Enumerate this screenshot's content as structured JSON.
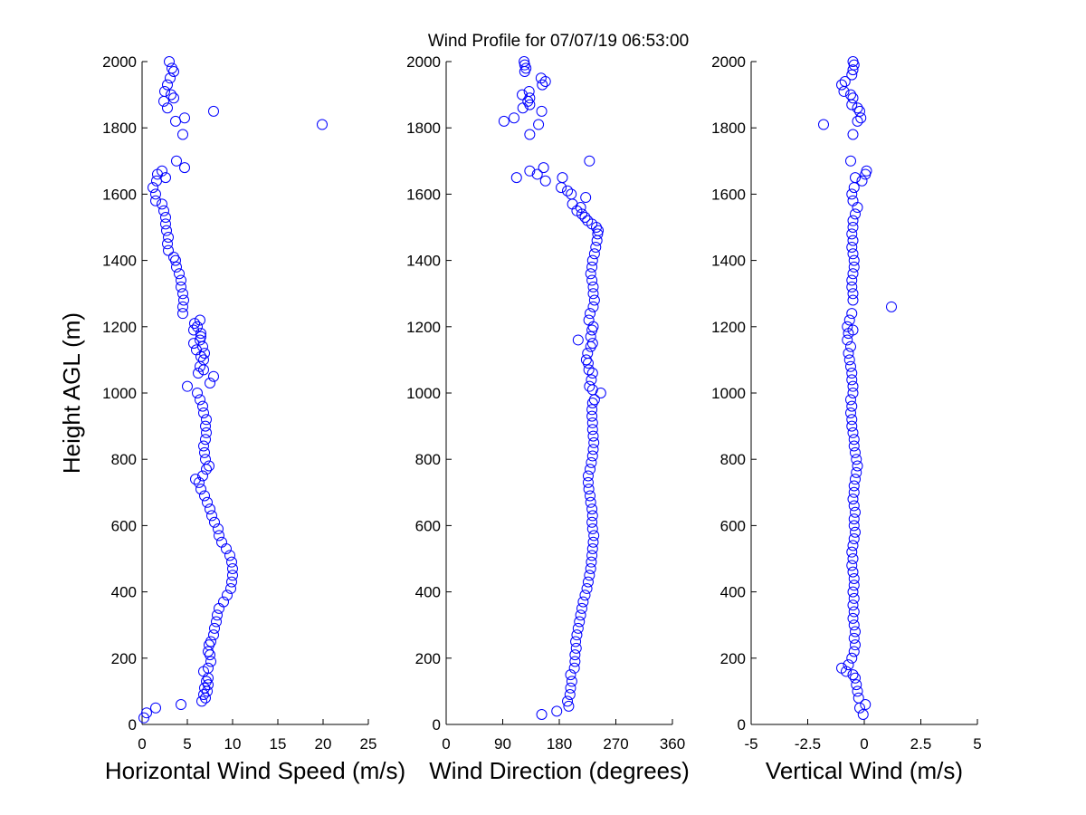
{
  "title": "Wind Profile for  07/07/19 06:53:00",
  "colors": {
    "marker": "#0000ff",
    "axis": "#000000",
    "background": "#ffffff"
  },
  "chart_data": [
    {
      "type": "scatter",
      "xlabel": "Horizontal Wind Speed (m/s)",
      "ylabel": "Height AGL (m)",
      "xlim": [
        0,
        25
      ],
      "ylim": [
        0,
        2000
      ],
      "xticks": [
        "0",
        "5",
        "10",
        "15",
        "20",
        "25"
      ],
      "yticks": [
        "0",
        "200",
        "400",
        "600",
        "800",
        "1000",
        "1200",
        "1400",
        "1600",
        "1800",
        "2000"
      ],
      "marker": "open-circle",
      "points": [
        [
          0.2,
          20
        ],
        [
          0.5,
          35
        ],
        [
          1.5,
          50
        ],
        [
          4.3,
          60
        ],
        [
          6.6,
          70
        ],
        [
          7,
          80
        ],
        [
          6.8,
          90
        ],
        [
          7.2,
          100
        ],
        [
          6.9,
          110
        ],
        [
          7.3,
          120
        ],
        [
          7.1,
          130
        ],
        [
          7.3,
          140
        ],
        [
          6.8,
          160
        ],
        [
          7.3,
          170
        ],
        [
          7.6,
          190
        ],
        [
          7.5,
          210
        ],
        [
          7.3,
          220
        ],
        [
          7.4,
          240
        ],
        [
          7.6,
          250
        ],
        [
          7.9,
          270
        ],
        [
          8,
          290
        ],
        [
          8.2,
          310
        ],
        [
          8.3,
          330
        ],
        [
          8.5,
          350
        ],
        [
          9,
          370
        ],
        [
          9.4,
          390
        ],
        [
          9.8,
          410
        ],
        [
          9.9,
          430
        ],
        [
          10,
          450
        ],
        [
          10,
          470
        ],
        [
          9.9,
          490
        ],
        [
          9.7,
          510
        ],
        [
          9.3,
          530
        ],
        [
          8.8,
          550
        ],
        [
          8.5,
          570
        ],
        [
          8.4,
          590
        ],
        [
          8,
          610
        ],
        [
          7.7,
          630
        ],
        [
          7.5,
          650
        ],
        [
          7.2,
          670
        ],
        [
          6.9,
          690
        ],
        [
          6.5,
          710
        ],
        [
          6.3,
          730
        ],
        [
          5.9,
          740
        ],
        [
          6.7,
          750
        ],
        [
          7.1,
          770
        ],
        [
          7.4,
          780
        ],
        [
          7,
          800
        ],
        [
          6.9,
          820
        ],
        [
          6.8,
          840
        ],
        [
          7,
          860
        ],
        [
          7.1,
          880
        ],
        [
          7,
          900
        ],
        [
          7.1,
          920
        ],
        [
          6.8,
          940
        ],
        [
          6.7,
          960
        ],
        [
          6.4,
          980
        ],
        [
          6.1,
          1000
        ],
        [
          5,
          1020
        ],
        [
          7.5,
          1030
        ],
        [
          7.9,
          1050
        ],
        [
          6.2,
          1060
        ],
        [
          6.8,
          1070
        ],
        [
          6.4,
          1080
        ],
        [
          6.8,
          1100
        ],
        [
          6.5,
          1110
        ],
        [
          6.9,
          1120
        ],
        [
          6,
          1130
        ],
        [
          6.7,
          1140
        ],
        [
          5.7,
          1150
        ],
        [
          6.4,
          1160
        ],
        [
          6.5,
          1170
        ],
        [
          6.5,
          1180
        ],
        [
          5.7,
          1190
        ],
        [
          6.1,
          1200
        ],
        [
          5.8,
          1210
        ],
        [
          6.4,
          1220
        ],
        [
          4.5,
          1240
        ],
        [
          4.5,
          1260
        ],
        [
          4.6,
          1280
        ],
        [
          4.5,
          1300
        ],
        [
          4.3,
          1320
        ],
        [
          4.3,
          1340
        ],
        [
          4.1,
          1360
        ],
        [
          3.8,
          1380
        ],
        [
          3.7,
          1400
        ],
        [
          3.5,
          1410
        ],
        [
          2.9,
          1430
        ],
        [
          2.8,
          1450
        ],
        [
          2.9,
          1470
        ],
        [
          2.7,
          1490
        ],
        [
          2.6,
          1510
        ],
        [
          2.6,
          1530
        ],
        [
          2.4,
          1550
        ],
        [
          2.2,
          1570
        ],
        [
          1.5,
          1580
        ],
        [
          1.5,
          1600
        ],
        [
          1.2,
          1620
        ],
        [
          1.6,
          1640
        ],
        [
          2.6,
          1650
        ],
        [
          1.7,
          1660
        ],
        [
          2.2,
          1670
        ],
        [
          4.7,
          1680
        ],
        [
          3.8,
          1700
        ],
        [
          4.5,
          1780
        ],
        [
          3.7,
          1820
        ],
        [
          4.7,
          1830
        ],
        [
          7.9,
          1850
        ],
        [
          19.9,
          1810
        ],
        [
          2.8,
          1860
        ],
        [
          2.4,
          1880
        ],
        [
          3.5,
          1890
        ],
        [
          3.2,
          1900
        ],
        [
          2.5,
          1910
        ],
        [
          2.8,
          1930
        ],
        [
          3.1,
          1950
        ],
        [
          3.5,
          1970
        ],
        [
          3.3,
          1980
        ],
        [
          3,
          2000
        ]
      ]
    },
    {
      "type": "scatter",
      "xlabel": "Wind Direction (degrees)",
      "ylabel": "",
      "xlim": [
        0,
        360
      ],
      "ylim": [
        0,
        2000
      ],
      "xticks": [
        "0",
        "90",
        "180",
        "270",
        "360"
      ],
      "yticks": [
        "0",
        "200",
        "400",
        "600",
        "800",
        "1000",
        "1200",
        "1400",
        "1600",
        "1800",
        "2000"
      ],
      "marker": "open-circle",
      "points": [
        [
          152,
          30
        ],
        [
          176,
          40
        ],
        [
          195,
          55
        ],
        [
          193,
          70
        ],
        [
          197,
          90
        ],
        [
          198,
          110
        ],
        [
          200,
          130
        ],
        [
          198,
          150
        ],
        [
          204,
          170
        ],
        [
          205,
          190
        ],
        [
          205,
          210
        ],
        [
          207,
          230
        ],
        [
          206,
          250
        ],
        [
          208,
          270
        ],
        [
          210,
          290
        ],
        [
          212,
          310
        ],
        [
          214,
          330
        ],
        [
          216,
          350
        ],
        [
          218,
          370
        ],
        [
          221,
          390
        ],
        [
          224,
          410
        ],
        [
          226,
          430
        ],
        [
          228,
          450
        ],
        [
          230,
          470
        ],
        [
          231,
          490
        ],
        [
          232,
          510
        ],
        [
          233,
          530
        ],
        [
          234,
          550
        ],
        [
          235,
          570
        ],
        [
          233,
          590
        ],
        [
          232,
          610
        ],
        [
          233,
          630
        ],
        [
          232,
          650
        ],
        [
          230,
          670
        ],
        [
          229,
          690
        ],
        [
          227,
          710
        ],
        [
          226,
          730
        ],
        [
          226,
          750
        ],
        [
          229,
          770
        ],
        [
          231,
          790
        ],
        [
          233,
          810
        ],
        [
          234,
          830
        ],
        [
          235,
          850
        ],
        [
          234,
          870
        ],
        [
          233,
          890
        ],
        [
          233,
          910
        ],
        [
          232,
          930
        ],
        [
          232,
          950
        ],
        [
          233,
          970
        ],
        [
          236,
          980
        ],
        [
          246,
          1000
        ],
        [
          233,
          1010
        ],
        [
          228,
          1020
        ],
        [
          231,
          1040
        ],
        [
          233,
          1060
        ],
        [
          227,
          1070
        ],
        [
          226,
          1090
        ],
        [
          223,
          1100
        ],
        [
          225,
          1120
        ],
        [
          230,
          1140
        ],
        [
          233,
          1150
        ],
        [
          210,
          1160
        ],
        [
          230,
          1170
        ],
        [
          232,
          1190
        ],
        [
          234,
          1200
        ],
        [
          227,
          1220
        ],
        [
          229,
          1240
        ],
        [
          234,
          1260
        ],
        [
          236,
          1280
        ],
        [
          234,
          1300
        ],
        [
          234,
          1320
        ],
        [
          232,
          1340
        ],
        [
          230,
          1360
        ],
        [
          232,
          1380
        ],
        [
          233,
          1400
        ],
        [
          236,
          1420
        ],
        [
          238,
          1440
        ],
        [
          240,
          1460
        ],
        [
          241,
          1480
        ],
        [
          242,
          1490
        ],
        [
          239,
          1500
        ],
        [
          232,
          1510
        ],
        [
          225,
          1520
        ],
        [
          221,
          1530
        ],
        [
          216,
          1540
        ],
        [
          208,
          1550
        ],
        [
          214,
          1560
        ],
        [
          201,
          1570
        ],
        [
          222,
          1590
        ],
        [
          199,
          1600
        ],
        [
          193,
          1610
        ],
        [
          183,
          1620
        ],
        [
          158,
          1640
        ],
        [
          185,
          1650
        ],
        [
          112,
          1650
        ],
        [
          145,
          1660
        ],
        [
          133,
          1670
        ],
        [
          155,
          1680
        ],
        [
          228,
          1700
        ],
        [
          133,
          1780
        ],
        [
          147,
          1810
        ],
        [
          92,
          1820
        ],
        [
          108,
          1830
        ],
        [
          152,
          1850
        ],
        [
          122,
          1860
        ],
        [
          133,
          1870
        ],
        [
          130,
          1880
        ],
        [
          133,
          1890
        ],
        [
          121,
          1900
        ],
        [
          132,
          1910
        ],
        [
          153,
          1930
        ],
        [
          158,
          1940
        ],
        [
          151,
          1950
        ],
        [
          125,
          1970
        ],
        [
          127,
          1980
        ],
        [
          125,
          1990
        ],
        [
          124,
          2000
        ]
      ]
    },
    {
      "type": "scatter",
      "xlabel": "Vertical Wind (m/s)",
      "ylabel": "",
      "xlim": [
        -5,
        5
      ],
      "ylim": [
        0,
        2000
      ],
      "xticks": [
        "-5",
        "-2.5",
        "0",
        "2.5",
        "5"
      ],
      "yticks": [
        "0",
        "200",
        "400",
        "600",
        "800",
        "1000",
        "1200",
        "1400",
        "1600",
        "1800",
        "2000"
      ],
      "marker": "open-circle",
      "points": [
        [
          -0.05,
          30
        ],
        [
          0.05,
          60
        ],
        [
          -0.2,
          50
        ],
        [
          -0.25,
          80
        ],
        [
          -0.3,
          100
        ],
        [
          -0.35,
          120
        ],
        [
          -0.4,
          140
        ],
        [
          -0.5,
          150
        ],
        [
          -0.8,
          160
        ],
        [
          -1,
          170
        ],
        [
          -0.7,
          180
        ],
        [
          -0.55,
          200
        ],
        [
          -0.45,
          220
        ],
        [
          -0.4,
          240
        ],
        [
          -0.45,
          260
        ],
        [
          -0.4,
          280
        ],
        [
          -0.45,
          300
        ],
        [
          -0.5,
          320
        ],
        [
          -0.45,
          340
        ],
        [
          -0.5,
          360
        ],
        [
          -0.45,
          380
        ],
        [
          -0.5,
          400
        ],
        [
          -0.45,
          420
        ],
        [
          -0.45,
          440
        ],
        [
          -0.5,
          460
        ],
        [
          -0.55,
          480
        ],
        [
          -0.5,
          500
        ],
        [
          -0.55,
          520
        ],
        [
          -0.5,
          540
        ],
        [
          -0.45,
          560
        ],
        [
          -0.4,
          580
        ],
        [
          -0.45,
          600
        ],
        [
          -0.45,
          620
        ],
        [
          -0.4,
          640
        ],
        [
          -0.45,
          660
        ],
        [
          -0.5,
          680
        ],
        [
          -0.45,
          700
        ],
        [
          -0.45,
          720
        ],
        [
          -0.4,
          740
        ],
        [
          -0.35,
          760
        ],
        [
          -0.3,
          780
        ],
        [
          -0.35,
          800
        ],
        [
          -0.4,
          820
        ],
        [
          -0.45,
          840
        ],
        [
          -0.45,
          860
        ],
        [
          -0.5,
          880
        ],
        [
          -0.55,
          900
        ],
        [
          -0.55,
          920
        ],
        [
          -0.6,
          940
        ],
        [
          -0.55,
          960
        ],
        [
          -0.6,
          980
        ],
        [
          -0.5,
          1000
        ],
        [
          -0.5,
          1020
        ],
        [
          -0.55,
          1040
        ],
        [
          -0.55,
          1060
        ],
        [
          -0.6,
          1080
        ],
        [
          -0.65,
          1100
        ],
        [
          -0.7,
          1120
        ],
        [
          -0.6,
          1140
        ],
        [
          -0.75,
          1160
        ],
        [
          -0.7,
          1180
        ],
        [
          -0.5,
          1190
        ],
        [
          -0.75,
          1200
        ],
        [
          -0.65,
          1220
        ],
        [
          -0.55,
          1240
        ],
        [
          1.2,
          1260
        ],
        [
          -0.5,
          1280
        ],
        [
          -0.5,
          1300
        ],
        [
          -0.55,
          1320
        ],
        [
          -0.55,
          1340
        ],
        [
          -0.5,
          1360
        ],
        [
          -0.45,
          1380
        ],
        [
          -0.45,
          1400
        ],
        [
          -0.5,
          1420
        ],
        [
          -0.55,
          1440
        ],
        [
          -0.5,
          1460
        ],
        [
          -0.55,
          1480
        ],
        [
          -0.5,
          1500
        ],
        [
          -0.5,
          1520
        ],
        [
          -0.4,
          1540
        ],
        [
          -0.3,
          1560
        ],
        [
          -0.5,
          1580
        ],
        [
          -0.55,
          1600
        ],
        [
          -0.45,
          1620
        ],
        [
          -0.1,
          1640
        ],
        [
          -0.4,
          1650
        ],
        [
          0.05,
          1660
        ],
        [
          0.1,
          1670
        ],
        [
          -0.6,
          1700
        ],
        [
          -0.5,
          1780
        ],
        [
          -1.8,
          1810
        ],
        [
          -0.3,
          1820
        ],
        [
          -0.15,
          1830
        ],
        [
          -0.2,
          1850
        ],
        [
          -0.3,
          1860
        ],
        [
          -0.55,
          1870
        ],
        [
          -0.5,
          1890
        ],
        [
          -0.6,
          1900
        ],
        [
          -0.9,
          1910
        ],
        [
          -1,
          1930
        ],
        [
          -0.85,
          1940
        ],
        [
          -0.55,
          1960
        ],
        [
          -0.5,
          1975
        ],
        [
          -0.45,
          1990
        ],
        [
          -0.5,
          2000
        ]
      ]
    }
  ]
}
